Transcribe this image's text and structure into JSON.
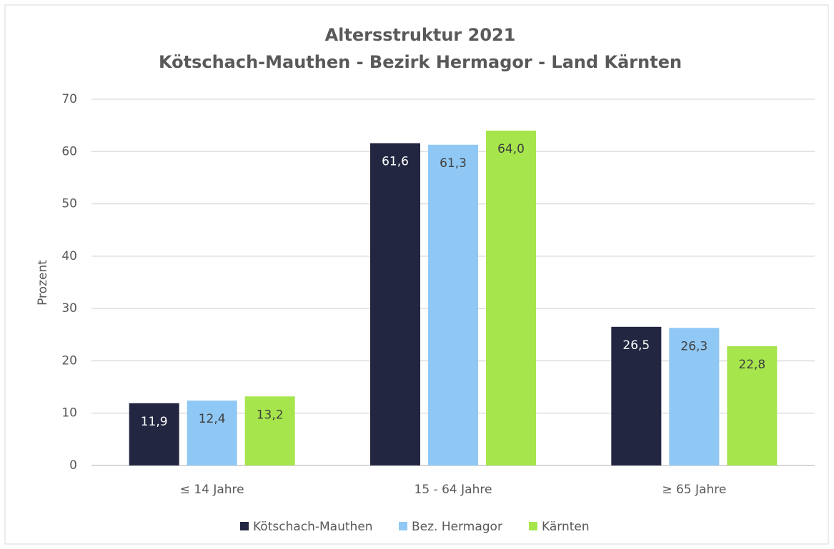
{
  "chart_data": {
    "type": "bar",
    "title": "Altersstruktur 2021",
    "subtitle": "Kötschach-Mauthen - Bezirk Hermagor - Land Kärnten",
    "y_label": "Prozent",
    "categories": [
      "≤ 14 Jahre",
      "15 - 64 Jahre",
      "≥ 65 Jahre"
    ],
    "series": [
      {
        "name": "Kötschach-Mauthen",
        "color": "#222641",
        "label_color": "#ffffff",
        "values": [
          11.9,
          61.6,
          26.5
        ],
        "value_labels": [
          "11,9",
          "61,6",
          "26,5"
        ]
      },
      {
        "name": "Bez. Hermagor",
        "color": "#8fc8f5",
        "label_color": "#404040",
        "values": [
          12.4,
          61.3,
          26.3
        ],
        "value_labels": [
          "12,4",
          "61,3",
          "26,3"
        ]
      },
      {
        "name": "Kärnten",
        "color": "#a6e64c",
        "label_color": "#404040",
        "values": [
          13.2,
          64.0,
          22.8
        ],
        "value_labels": [
          "13,2",
          "64,0",
          "22,8"
        ]
      }
    ],
    "ylim": [
      0,
      70
    ],
    "yticks": [
      0,
      10,
      20,
      30,
      40,
      50,
      60,
      70
    ],
    "grid": true,
    "legend": "bottom"
  }
}
